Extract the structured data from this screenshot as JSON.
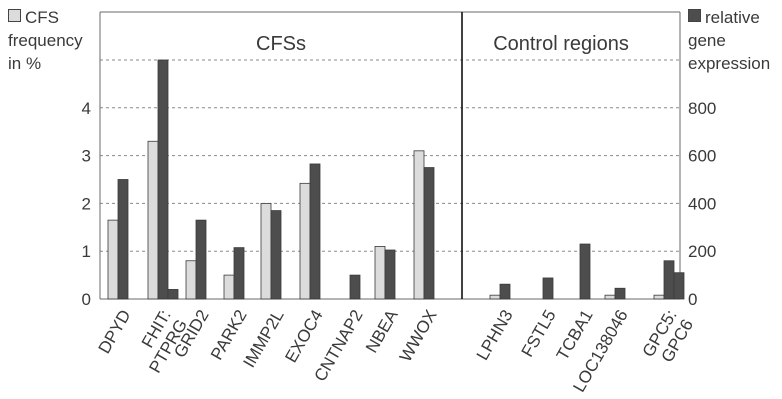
{
  "legend": {
    "cfs_label_lines": [
      "CFS",
      "frequency",
      "in %"
    ],
    "expr_label_lines": [
      "relative",
      "gene",
      "expression"
    ]
  },
  "colors": {
    "cfs_bar": "#dcdcdc",
    "expr_bar": "#4d4d4d",
    "bar_outline": "#3a3a3a",
    "grid": "#8a8a8a",
    "axis": "#6a6a6a",
    "text": "#3a3a3a"
  },
  "chart_data": {
    "type": "bar",
    "categories": [
      "DPYD",
      "FHIT:\nPTPRG",
      "GRID2",
      "PARK2",
      "IMMP2L",
      "EXOC4",
      "CNTNAP2",
      "NBEA",
      "WWOX",
      "LPHN3",
      "FSTL5",
      "TCBA1",
      "LOC138046",
      "GPC5:\nGPC6"
    ],
    "groups": [
      {
        "label": "CFSs",
        "start": 0,
        "end": 8
      },
      {
        "label": "Control regions",
        "start": 9,
        "end": 13
      }
    ],
    "series": [
      {
        "name": "CFS frequency in %",
        "axis": "left",
        "values": [
          1.65,
          3.3,
          0.8,
          0.5,
          2.0,
          2.42,
          0,
          1.1,
          3.1,
          0.08,
          0,
          0,
          0.08,
          0.08
        ]
      },
      {
        "name": "relative gene expression",
        "axis": "right",
        "values": [
          500,
          1000,
          330,
          215,
          370,
          565,
          100,
          205,
          550,
          62,
          88,
          230,
          45,
          160
        ]
      },
      {
        "name": "relative gene expression (PTPRG / GPC6)",
        "axis": "right",
        "values": [
          null,
          40,
          null,
          null,
          null,
          null,
          null,
          null,
          null,
          null,
          null,
          null,
          null,
          110
        ]
      }
    ],
    "left_axis": {
      "ticks": [
        0,
        1,
        2,
        3,
        4
      ],
      "max": 5
    },
    "right_axis": {
      "ticks": [
        0,
        200,
        400,
        600,
        800
      ],
      "max": 1000
    },
    "grid": true
  }
}
